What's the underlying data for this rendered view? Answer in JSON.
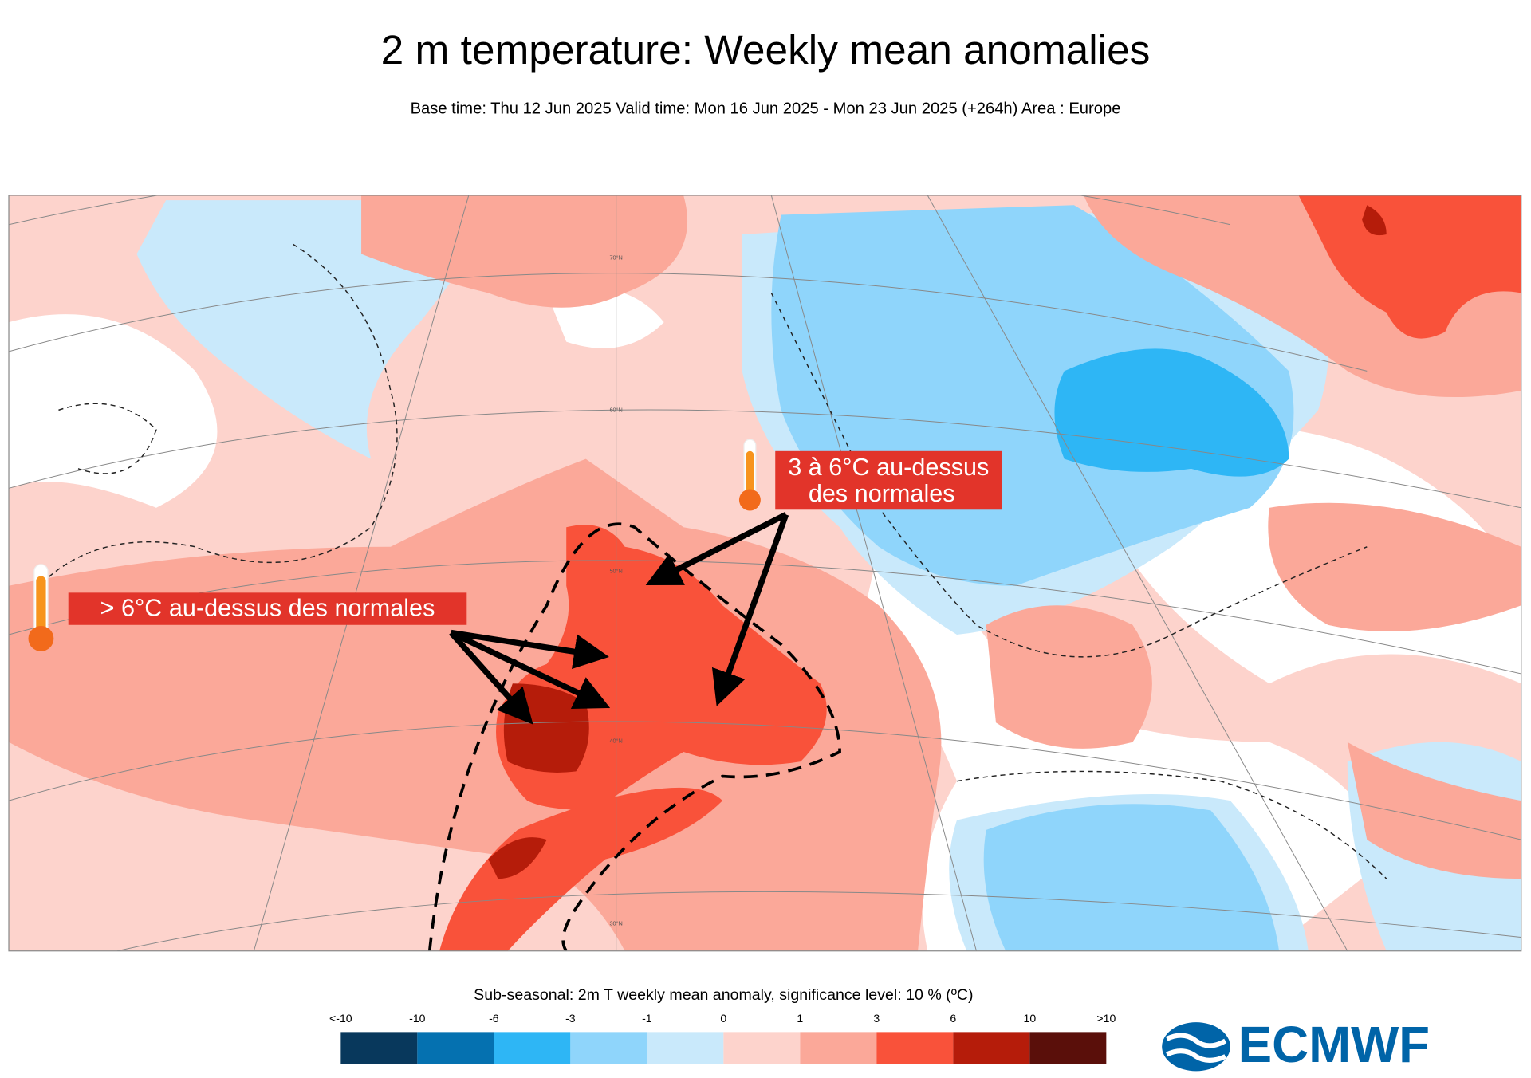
{
  "header": {
    "title": "2 m temperature: Weekly mean anomalies",
    "subtitle": "Base time: Thu 12 Jun 2025 Valid time: Mon 16 Jun 2025 - Mon 23 Jun 2025 (+264h) Area : Europe"
  },
  "map": {
    "lat_labels": [
      "70°N",
      "60°N",
      "50°N",
      "40°N",
      "30°N"
    ],
    "annotations": [
      {
        "lines": [
          "3 à 6°C au-dessus",
          "des normales"
        ]
      },
      {
        "lines": [
          "> 6°C au-dessus des normales"
        ]
      }
    ]
  },
  "legend": {
    "title": "Sub-seasonal: 2m T weekly mean anomaly, significance level: 10 % (ºC)",
    "labels": [
      "<-10",
      "-10",
      "-6",
      "-3",
      "-1",
      "0",
      "1",
      "3",
      "6",
      "10",
      ">10"
    ],
    "colors": [
      "#08385c",
      "#0571b0",
      "#2eb6f5",
      "#8fd5fb",
      "#c9e9fb",
      "#fdd3cc",
      "#fba899",
      "#f9523a",
      "#b51c0a",
      "#5a0f0a"
    ]
  },
  "logo": {
    "text": "ECMWF"
  }
}
